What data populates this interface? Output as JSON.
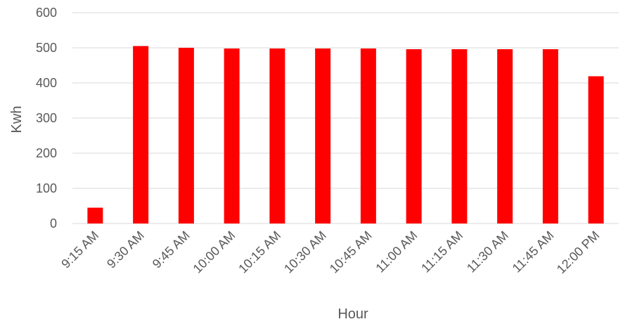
{
  "chart_data": {
    "type": "bar",
    "categories": [
      "9:15 AM",
      "9:30 AM",
      "9:45 AM",
      "10:00 AM",
      "10:15 AM",
      "10:30 AM",
      "10:45 AM",
      "11:00 AM",
      "11:15 AM",
      "11:30 AM",
      "11:45 AM",
      "12:00 PM"
    ],
    "values": [
      45,
      505,
      500,
      498,
      498,
      498,
      498,
      496,
      496,
      496,
      496,
      419
    ],
    "title": "",
    "xlabel": "Hour",
    "ylabel": "Kwh",
    "ylim": [
      0,
      600
    ],
    "yticks": [
      0,
      100,
      200,
      300,
      400,
      500,
      600
    ],
    "grid": true,
    "legend": "none",
    "bar_color": "#ff0000"
  }
}
